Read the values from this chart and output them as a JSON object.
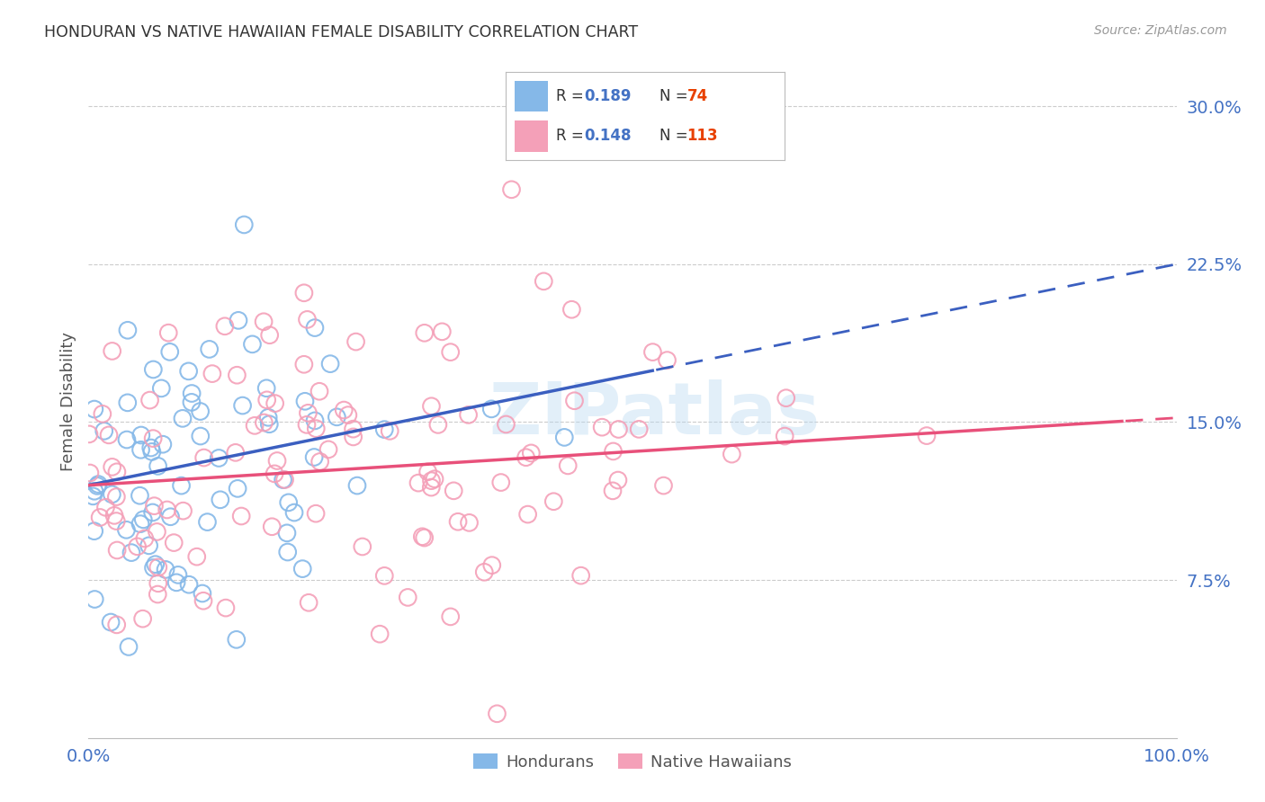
{
  "title": "HONDURAN VS NATIVE HAWAIIAN FEMALE DISABILITY CORRELATION CHART",
  "source": "Source: ZipAtlas.com",
  "ylabel": "Female Disability",
  "xlim": [
    0,
    1.0
  ],
  "ylim": [
    0,
    0.32
  ],
  "xticks": [
    0.0,
    0.25,
    0.5,
    0.75,
    1.0
  ],
  "xticklabels": [
    "0.0%",
    "",
    "",
    "",
    "100.0%"
  ],
  "yticks": [
    0.075,
    0.15,
    0.225,
    0.3
  ],
  "yticklabels": [
    "7.5%",
    "15.0%",
    "22.5%",
    "30.0%"
  ],
  "honduran_color": "#85B8E8",
  "native_hawaiian_color": "#F4A0B8",
  "honduran_line_color": "#3B5FC0",
  "native_hawaiian_line_color": "#E8507A",
  "honduran_R": 0.189,
  "honduran_N": 74,
  "native_hawaiian_R": 0.148,
  "native_hawaiian_N": 113,
  "legend_R_color": "#4472C4",
  "legend_N_color": "#E84000",
  "background_color": "#FFFFFF",
  "grid_color": "#CCCCCC",
  "title_color": "#333333",
  "axis_label_color": "#4472C4",
  "watermark": "ZIPatlas",
  "hon_line_x0": 0.0,
  "hon_line_y0": 0.12,
  "hon_line_x1": 1.0,
  "hon_line_y1": 0.225,
  "hon_line_solid_end": 0.52,
  "nh_line_x0": 0.0,
  "nh_line_y0": 0.12,
  "nh_line_x1": 1.0,
  "nh_line_y1": 0.152,
  "nh_line_solid_end": 0.95
}
